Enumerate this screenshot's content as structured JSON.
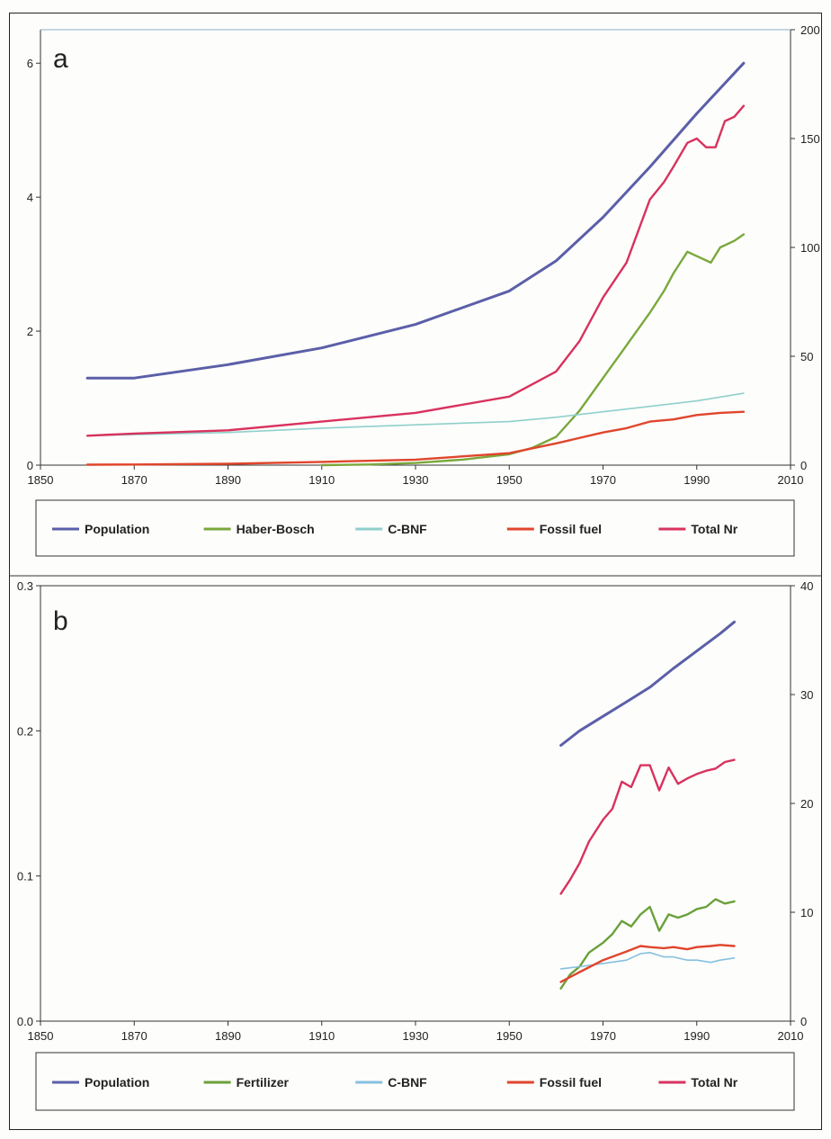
{
  "colors": {
    "population": "#5b5fa8",
    "haber_bosch": "#7aa83c",
    "fertilizer": "#6aa03a",
    "cbnf_a": "#8fd0cc",
    "cbnf_b": "#86c0e0",
    "fossil_fuel": "#e0452c",
    "total_nr": "#d8325e",
    "axis": "#333333"
  },
  "chart_data": [
    {
      "type": "line",
      "panel_label": "a",
      "x_ticks": [
        1850,
        1870,
        1890,
        1910,
        1930,
        1950,
        1970,
        1990,
        2010
      ],
      "y_left_ticks": [
        0,
        2,
        4,
        6
      ],
      "y_right_ticks": [
        0,
        50,
        100,
        150,
        200
      ],
      "xlim": [
        1850,
        2010
      ],
      "ylim_left": [
        0,
        6.5
      ],
      "ylim_right": [
        0,
        200
      ],
      "legend_position": "bottom",
      "series": [
        {
          "name": "Population",
          "axis": "left",
          "color_key": "population",
          "x": [
            1860,
            1870,
            1890,
            1910,
            1930,
            1950,
            1960,
            1970,
            1980,
            1990,
            2000
          ],
          "y": [
            1.3,
            1.3,
            1.5,
            1.75,
            2.1,
            2.6,
            3.05,
            3.7,
            4.45,
            5.25,
            6.0
          ]
        },
        {
          "name": "Haber-Bosch",
          "axis": "right",
          "color_key": "haber_bosch",
          "x": [
            1910,
            1920,
            1930,
            1940,
            1950,
            1955,
            1960,
            1965,
            1970,
            1975,
            1980,
            1983,
            1985,
            1988,
            1990,
            1993,
            1995,
            1998,
            2000
          ],
          "y": [
            0,
            0.3,
            1,
            2.5,
            5,
            8,
            13,
            25,
            40,
            55,
            70,
            80,
            88,
            98,
            96,
            93,
            100,
            103,
            106
          ]
        },
        {
          "name": "C-BNF",
          "axis": "right",
          "color_key": "cbnf_a",
          "x": [
            1860,
            1870,
            1890,
            1910,
            1930,
            1950,
            1960,
            1970,
            1980,
            1990,
            2000
          ],
          "y": [
            13.5,
            14,
            15,
            17,
            18.5,
            20,
            22,
            24.5,
            27,
            29.5,
            33
          ]
        },
        {
          "name": "Fossil fuel",
          "axis": "right",
          "color_key": "fossil_fuel",
          "x": [
            1860,
            1870,
            1890,
            1910,
            1930,
            1950,
            1960,
            1970,
            1975,
            1980,
            1985,
            1990,
            1995,
            2000
          ],
          "y": [
            0.2,
            0.3,
            0.6,
            1.5,
            2.5,
            5.5,
            10,
            15,
            17,
            20,
            21,
            23,
            24,
            24.5
          ]
        },
        {
          "name": "Total Nr",
          "axis": "right",
          "color_key": "total_nr",
          "x": [
            1860,
            1870,
            1890,
            1910,
            1930,
            1950,
            1960,
            1965,
            1970,
            1975,
            1980,
            1983,
            1985,
            1988,
            1990,
            1992,
            1994,
            1996,
            1998,
            2000
          ],
          "y": [
            13.5,
            14.5,
            16,
            20,
            24,
            31.5,
            43,
            57,
            77,
            93,
            122,
            130,
            137,
            148,
            150,
            146,
            146,
            158,
            160,
            165
          ]
        }
      ],
      "legend": [
        "Population",
        "Haber-Bosch",
        "C-BNF",
        "Fossil fuel",
        "Total Nr"
      ]
    },
    {
      "type": "line",
      "panel_label": "b",
      "x_ticks": [
        1850,
        1870,
        1890,
        1910,
        1930,
        1950,
        1970,
        1990,
        2010
      ],
      "y_left_ticks": [
        "0.0",
        "0.1",
        "0.2",
        "0.3"
      ],
      "y_right_ticks": [
        0,
        10,
        20,
        30,
        40
      ],
      "xlim": [
        1850,
        2010
      ],
      "ylim_left": [
        0,
        0.3
      ],
      "ylim_right": [
        0,
        40
      ],
      "legend_position": "bottom",
      "series": [
        {
          "name": "Population",
          "axis": "left",
          "color_key": "population",
          "x": [
            1961,
            1965,
            1970,
            1975,
            1980,
            1985,
            1990,
            1995,
            1998
          ],
          "y": [
            0.19,
            0.2,
            0.21,
            0.22,
            0.23,
            0.243,
            0.255,
            0.267,
            0.275
          ]
        },
        {
          "name": "Fertilizer",
          "axis": "right",
          "color_key": "fertilizer",
          "x": [
            1961,
            1963,
            1965,
            1967,
            1970,
            1972,
            1974,
            1976,
            1978,
            1980,
            1982,
            1984,
            1986,
            1988,
            1990,
            1992,
            1994,
            1996,
            1998
          ],
          "y": [
            3,
            4.3,
            5,
            6.3,
            7.2,
            8,
            9.2,
            8.7,
            9.8,
            10.5,
            8.3,
            9.8,
            9.5,
            9.8,
            10.3,
            10.5,
            11.2,
            10.8,
            11
          ]
        },
        {
          "name": "C-BNF",
          "axis": "right",
          "color_key": "cbnf_b",
          "x": [
            1961,
            1965,
            1970,
            1975,
            1978,
            1980,
            1983,
            1985,
            1988,
            1990,
            1993,
            1995,
            1998
          ],
          "y": [
            4.8,
            5,
            5.3,
            5.6,
            6.2,
            6.3,
            5.9,
            5.9,
            5.6,
            5.6,
            5.4,
            5.6,
            5.8
          ]
        },
        {
          "name": "Fossil fuel",
          "axis": "right",
          "color_key": "fossil_fuel",
          "x": [
            1961,
            1965,
            1970,
            1975,
            1978,
            1980,
            1983,
            1985,
            1988,
            1990,
            1993,
            1995,
            1998
          ],
          "y": [
            3.6,
            4.5,
            5.6,
            6.4,
            6.9,
            6.8,
            6.7,
            6.8,
            6.6,
            6.8,
            6.9,
            7.0,
            6.9
          ]
        },
        {
          "name": "Total Nr",
          "axis": "right",
          "color_key": "total_nr",
          "x": [
            1961,
            1963,
            1965,
            1967,
            1970,
            1972,
            1974,
            1976,
            1978,
            1980,
            1982,
            1984,
            1986,
            1988,
            1990,
            1992,
            1994,
            1996,
            1998
          ],
          "y": [
            11.7,
            13,
            14.5,
            16.5,
            18.5,
            19.5,
            22,
            21.5,
            23.5,
            23.5,
            21.2,
            23.3,
            21.8,
            22.3,
            22.7,
            23,
            23.2,
            23.8,
            24
          ]
        }
      ],
      "legend": [
        "Population",
        "Fertilizer",
        "C-BNF",
        "Fossil fuel",
        "Total Nr"
      ]
    }
  ]
}
